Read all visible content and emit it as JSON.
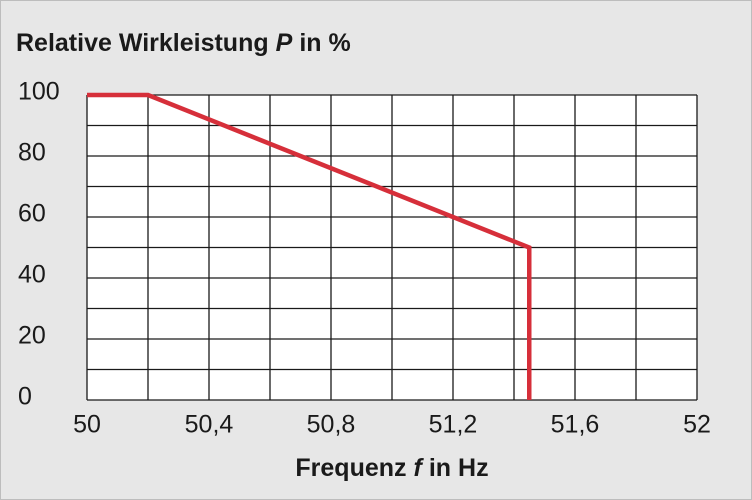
{
  "chart_data": {
    "type": "line",
    "title_parts": [
      "Relative Wirkleistung",
      "P",
      "in %"
    ],
    "xlabel_parts": [
      "Frequenz",
      "f",
      "in Hz"
    ],
    "xlim": [
      50,
      52
    ],
    "xticks": [
      50,
      {
        "value": 50.4,
        "label": "50,4"
      },
      {
        "value": 50.8,
        "label": "50,8"
      },
      {
        "value": 51.2,
        "label": "51,2"
      },
      {
        "value": 51.6,
        "label": "51,6"
      },
      52
    ],
    "xminor_ticks": [
      50.2,
      50.6,
      51.0,
      51.4,
      51.8
    ],
    "ylim": [
      0,
      100
    ],
    "yticks": [
      0,
      20,
      40,
      60,
      80,
      100
    ],
    "yminor_ticks": [
      10,
      30,
      50,
      70,
      90
    ],
    "grid": true,
    "series": [
      {
        "color": "#d62f3a",
        "x": [
          50,
          50.2,
          51.45,
          51.45
        ],
        "values": [
          100,
          100,
          50,
          0
        ]
      }
    ]
  }
}
